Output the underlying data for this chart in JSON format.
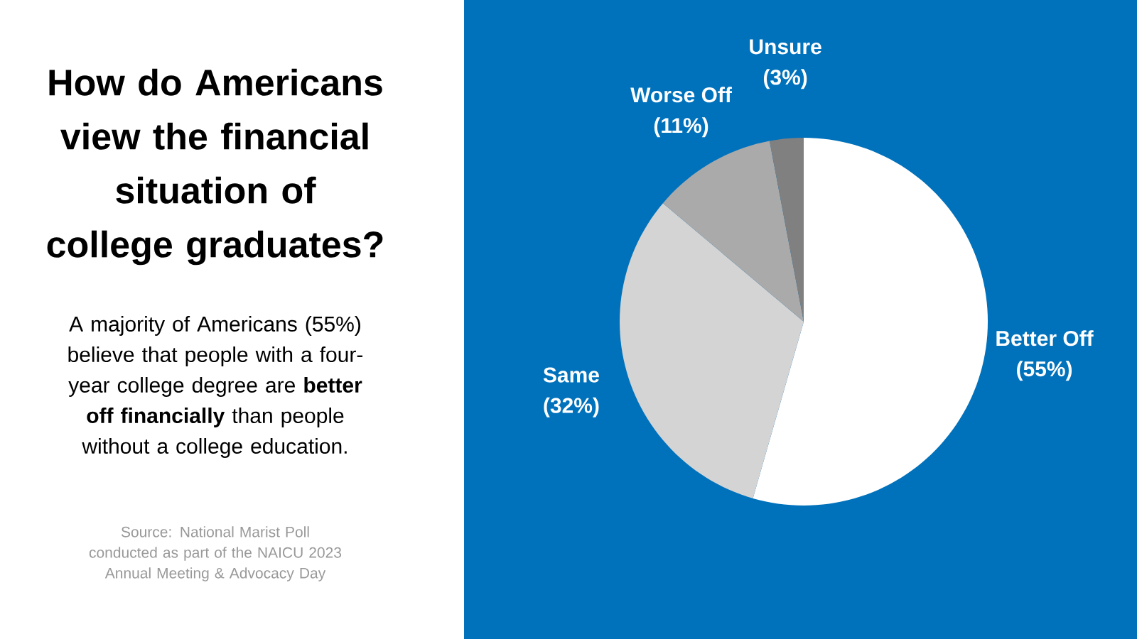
{
  "chart_data": {
    "type": "pie",
    "title": "How do Americans view the financial situation of college graduates?",
    "subtitle": "A majority of Americans (55%) believe that people with a four-year college degree are **better off financially** than people without a college education.",
    "annotations": [
      "Source: National Marist Poll conducted as part of the NAICU 2023 Annual Meeting & Advocacy Day"
    ],
    "categories": [
      "Better Off",
      "Same",
      "Worse Off",
      "Unsure"
    ],
    "values": [
      55,
      32,
      11,
      3
    ],
    "value_labels": [
      "(55%)",
      "(32%)",
      "(11%)",
      "(3%)"
    ],
    "colors": [
      "#ffffff",
      "#d4d4d4",
      "#aaaaaa",
      "#808080"
    ]
  }
}
